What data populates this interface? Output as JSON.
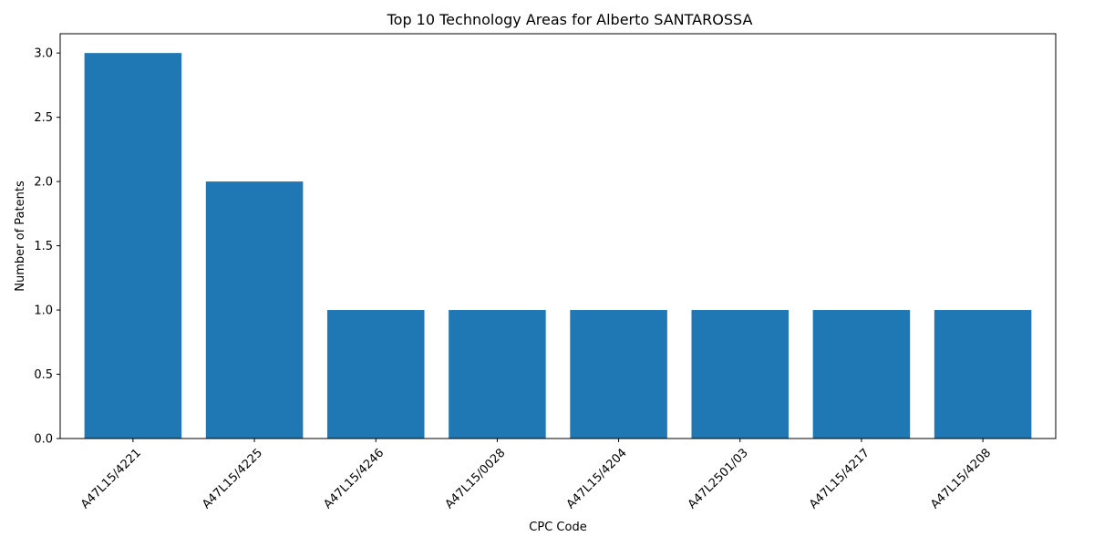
{
  "chart_data": {
    "type": "bar",
    "title": "Top 10 Technology Areas for Alberto SANTAROSSA",
    "xlabel": "CPC Code",
    "ylabel": "Number of Patents",
    "categories": [
      "A47L15/4221",
      "A47L15/4225",
      "A47L15/4246",
      "A47L15/0028",
      "A47L15/4204",
      "A47L2501/03",
      "A47L15/4217",
      "A47L15/4208"
    ],
    "values": [
      3,
      2,
      1,
      1,
      1,
      1,
      1,
      1
    ],
    "ylim": [
      0,
      3.15
    ],
    "yticks": [
      "0.0",
      "0.5",
      "1.0",
      "1.5",
      "2.0",
      "2.5",
      "3.0"
    ],
    "grid": false,
    "bar_color": "#1f77b4"
  }
}
